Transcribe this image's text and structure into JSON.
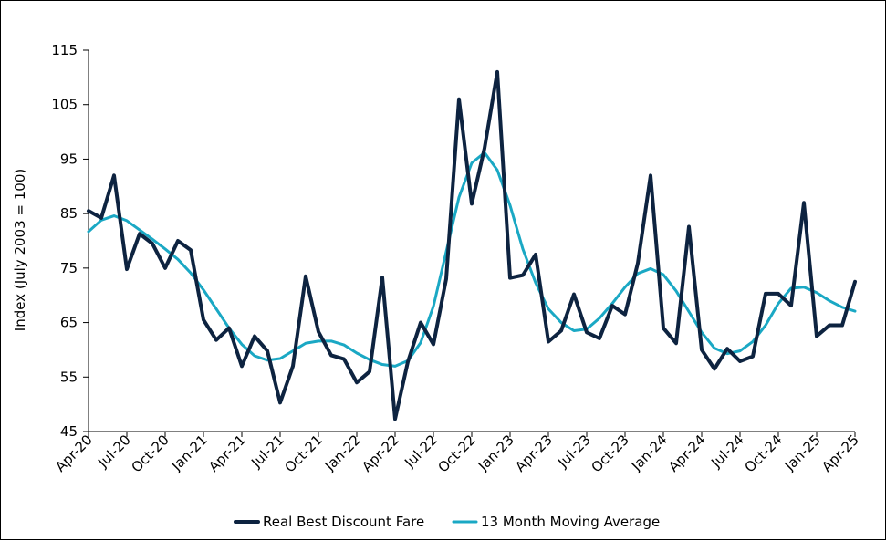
{
  "chart_data": {
    "type": "line",
    "ylabel": "Index (July 2003 = 100)",
    "xlabel": "",
    "title": "",
    "ylim": [
      45,
      115
    ],
    "yticks": [
      45,
      55,
      65,
      75,
      85,
      95,
      105,
      115
    ],
    "grid": false,
    "legend_position": "bottom",
    "x": [
      "Apr-20",
      "May-20",
      "Jun-20",
      "Jul-20",
      "Aug-20",
      "Sep-20",
      "Oct-20",
      "Nov-20",
      "Dec-20",
      "Jan-21",
      "Feb-21",
      "Mar-21",
      "Apr-21",
      "May-21",
      "Jun-21",
      "Jul-21",
      "Aug-21",
      "Sep-21",
      "Oct-21",
      "Nov-21",
      "Dec-21",
      "Jan-22",
      "Feb-22",
      "Mar-22",
      "Apr-22",
      "May-22",
      "Jun-22",
      "Jul-22",
      "Aug-22",
      "Sep-22",
      "Oct-22",
      "Nov-22",
      "Dec-22",
      "Jan-23",
      "Feb-23",
      "Mar-23",
      "Apr-23",
      "May-23",
      "Jun-23",
      "Jul-23",
      "Aug-23",
      "Sep-23",
      "Oct-23",
      "Nov-23",
      "Dec-23",
      "Jan-24",
      "Feb-24",
      "Mar-24",
      "Apr-24",
      "May-24",
      "Jun-24",
      "Jul-24",
      "Aug-24",
      "Sep-24",
      "Oct-24",
      "Nov-24",
      "Dec-24",
      "Jan-25",
      "Feb-25",
      "Mar-25",
      "Apr-25"
    ],
    "xtick_labels": [
      "Apr-20",
      "Jul-20",
      "Oct-20",
      "Jan-21",
      "Apr-21",
      "Jul-21",
      "Oct-21",
      "Jan-22",
      "Apr-22",
      "Jul-22",
      "Oct-22",
      "Jan-23",
      "Apr-23",
      "Jul-23",
      "Oct-23",
      "Jan-24",
      "Apr-24",
      "Jul-24",
      "Oct-24",
      "Jan-25",
      "Apr-25"
    ],
    "series": [
      {
        "name": "Real Best Discount Fare",
        "color": "#0d2340",
        "values": [
          85.5,
          84.2,
          92.0,
          74.8,
          81.3,
          79.5,
          75.0,
          80.0,
          78.3,
          65.5,
          61.8,
          64.0,
          57.0,
          62.5,
          59.8,
          50.3,
          57.0,
          73.5,
          63.3,
          59.0,
          58.3,
          54.0,
          56.0,
          73.3,
          47.3,
          57.8,
          65.0,
          61.0,
          73.0,
          106.0,
          86.8,
          97.0,
          111.0,
          73.2,
          73.7,
          77.5,
          61.5,
          63.5,
          70.2,
          63.2,
          62.1,
          68.1,
          66.5,
          75.9,
          92.0,
          64.0,
          61.2,
          82.6,
          60.0,
          56.5,
          60.2,
          57.9,
          58.8,
          70.3,
          70.3,
          68.1,
          87.0,
          62.5,
          64.5,
          64.5,
          72.5
        ]
      },
      {
        "name": "13 Month Moving Average",
        "color": "#1aa8c4",
        "values": [
          81.7,
          83.8,
          84.6,
          83.7,
          82.0,
          80.3,
          78.5,
          76.6,
          74.1,
          71.0,
          67.5,
          64.0,
          61.0,
          58.9,
          58.1,
          58.4,
          59.8,
          61.2,
          61.6,
          61.6,
          60.9,
          59.4,
          58.2,
          57.3,
          57.0,
          58.0,
          61.3,
          68.0,
          78.0,
          88.0,
          94.3,
          96.2,
          93.0,
          86.5,
          78.5,
          72.3,
          67.5,
          65.0,
          63.5,
          63.8,
          65.8,
          68.5,
          71.5,
          74.0,
          74.9,
          73.8,
          70.8,
          67.0,
          63.2,
          60.3,
          59.3,
          59.8,
          61.5,
          64.5,
          68.5,
          71.3,
          71.5,
          70.5,
          69.0,
          67.8,
          67.1
        ]
      }
    ]
  }
}
